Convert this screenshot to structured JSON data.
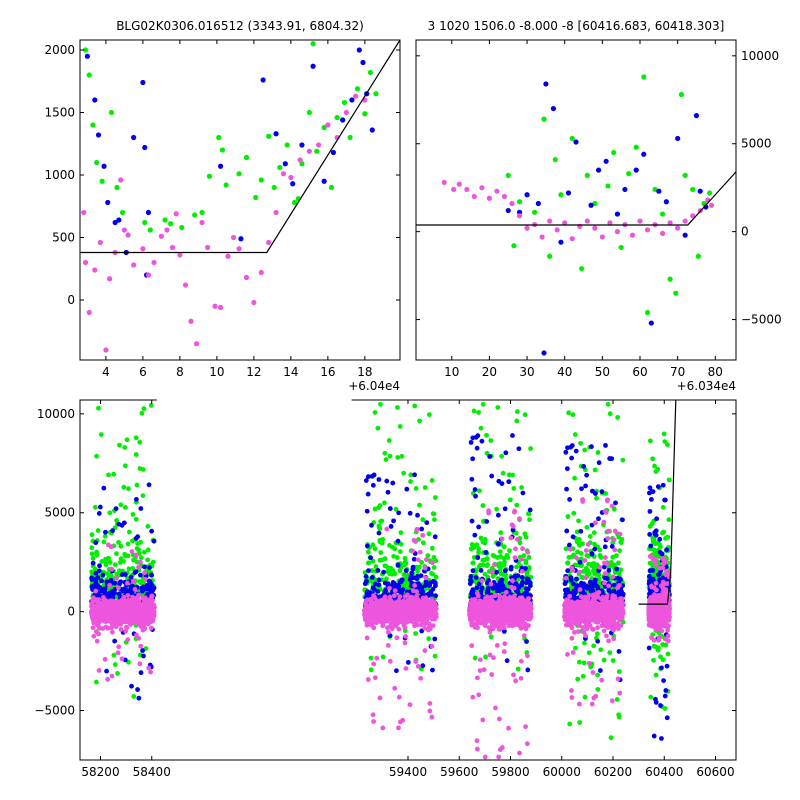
{
  "chart_data": [
    {
      "type": "scatter",
      "title": "BLG02K0306.016512 (3343.91, 6804.32)",
      "x_offset_label": "+6.04e4",
      "xlim": [
        60402.6,
        60419.9
      ],
      "ylim": [
        -480,
        2080
      ],
      "x_ticks": [
        60404,
        60406,
        60408,
        60410,
        60412,
        60414,
        60416,
        60418
      ],
      "x_tick_labels": [
        "4",
        "6",
        "8",
        "10",
        "12",
        "14",
        "16",
        "18"
      ],
      "y_ticks": [
        0,
        500,
        1000,
        1500,
        2000
      ],
      "y_tick_labels": [
        "0",
        "500",
        "1000",
        "1500",
        "2000"
      ],
      "series": [
        {
          "color": "#00ee00",
          "points": [
            [
              60402.9,
              2000
            ],
            [
              60403.1,
              1800
            ],
            [
              60403.3,
              1400
            ],
            [
              60403.5,
              1100
            ],
            [
              60403.8,
              950
            ],
            [
              60404.3,
              1500
            ],
            [
              60404.6,
              900
            ],
            [
              60404.9,
              700
            ],
            [
              60406.1,
              620
            ],
            [
              60406.4,
              560
            ],
            [
              60407.2,
              640
            ],
            [
              60407.5,
              610
            ],
            [
              60408.1,
              580
            ],
            [
              60408.8,
              680
            ],
            [
              60409.2,
              700
            ],
            [
              60409.6,
              990
            ],
            [
              60410.1,
              1300
            ],
            [
              60410.3,
              1200
            ],
            [
              60410.5,
              920
            ],
            [
              60411.2,
              1010
            ],
            [
              60411.6,
              1140
            ],
            [
              60412.1,
              820
            ],
            [
              60412.4,
              960
            ],
            [
              60412.8,
              1310
            ],
            [
              60413.1,
              900
            ],
            [
              60413.4,
              1060
            ],
            [
              60413.8,
              1240
            ],
            [
              60414.2,
              780
            ],
            [
              60414.6,
              1090
            ],
            [
              60415.0,
              1500
            ],
            [
              60415.4,
              1190
            ],
            [
              60415.8,
              1380
            ],
            [
              60416.2,
              900
            ],
            [
              60416.5,
              1460
            ],
            [
              60416.9,
              1580
            ],
            [
              60417.2,
              1300
            ],
            [
              60417.6,
              1690
            ],
            [
              60418.0,
              1490
            ],
            [
              60418.3,
              1820
            ],
            [
              60418.6,
              1650
            ],
            [
              60415.2,
              2050
            ],
            [
              60414.4,
              810
            ]
          ]
        },
        {
          "color": "#0000ee",
          "points": [
            [
              60403.0,
              1950
            ],
            [
              60403.4,
              1600
            ],
            [
              60403.6,
              1320
            ],
            [
              60403.9,
              1070
            ],
            [
              60404.1,
              780
            ],
            [
              60404.5,
              620
            ],
            [
              60405.1,
              380
            ],
            [
              60405.5,
              1300
            ],
            [
              60406.0,
              1740
            ],
            [
              60406.1,
              1220
            ],
            [
              60406.3,
              700
            ],
            [
              60406.2,
              200
            ],
            [
              60411.3,
              490
            ],
            [
              60412.5,
              1760
            ],
            [
              60413.2,
              1330
            ],
            [
              60413.7,
              1090
            ],
            [
              60414.1,
              930
            ],
            [
              60414.6,
              1240
            ],
            [
              60415.2,
              1870
            ],
            [
              60415.8,
              950
            ],
            [
              60416.3,
              1180
            ],
            [
              60416.8,
              1440
            ],
            [
              60417.3,
              1600
            ],
            [
              60417.7,
              2000
            ],
            [
              60418.1,
              1650
            ],
            [
              60418.4,
              1360
            ],
            [
              60417.9,
              1900
            ],
            [
              60404.7,
              640
            ],
            [
              60410.2,
              1070
            ]
          ]
        },
        {
          "color": "#ee55dd",
          "points": [
            [
              60402.8,
              700
            ],
            [
              60402.9,
              300
            ],
            [
              60403.1,
              -100
            ],
            [
              60403.4,
              240
            ],
            [
              60403.7,
              460
            ],
            [
              60404.2,
              170
            ],
            [
              60404.5,
              380
            ],
            [
              60404.8,
              960
            ],
            [
              60405.2,
              520
            ],
            [
              60405.5,
              280
            ],
            [
              60406.0,
              410
            ],
            [
              60406.3,
              200
            ],
            [
              60406.6,
              300
            ],
            [
              60407.0,
              510
            ],
            [
              60407.3,
              560
            ],
            [
              60407.6,
              420
            ],
            [
              60408.0,
              360
            ],
            [
              60408.3,
              120
            ],
            [
              60408.6,
              -170
            ],
            [
              60408.9,
              -350
            ],
            [
              60409.2,
              620
            ],
            [
              60409.5,
              420
            ],
            [
              60409.9,
              -50
            ],
            [
              60410.2,
              -60
            ],
            [
              60410.6,
              350
            ],
            [
              60410.9,
              500
            ],
            [
              60411.2,
              410
            ],
            [
              60411.6,
              180
            ],
            [
              60412.0,
              -20
            ],
            [
              60412.4,
              220
            ],
            [
              60412.8,
              460
            ],
            [
              60413.2,
              700
            ],
            [
              60413.6,
              1010
            ],
            [
              60414.0,
              980
            ],
            [
              60414.5,
              1120
            ],
            [
              60415.0,
              1190
            ],
            [
              60415.5,
              1240
            ],
            [
              60416.0,
              1400
            ],
            [
              60416.5,
              1300
            ],
            [
              60417.0,
              1500
            ],
            [
              60417.5,
              1630
            ],
            [
              60418.0,
              1600
            ],
            [
              60407.8,
              690
            ],
            [
              60405.0,
              560
            ],
            [
              60404.0,
              -400
            ]
          ]
        }
      ],
      "model_line": [
        [
          60402.6,
          380
        ],
        [
          60412.7,
          380
        ],
        [
          60419.9,
          2080
        ]
      ]
    },
    {
      "type": "scatter",
      "title": "3 1020 1506.0 -8.000 -8 [60416.683, 60418.303]",
      "x_offset_label": "+6.034e4",
      "xlim": [
        60340.5,
        60425.5
      ],
      "ylim": [
        -7300,
        10900
      ],
      "x_ticks": [
        60350,
        60360,
        60370,
        60380,
        60390,
        60400,
        60410,
        60420
      ],
      "x_tick_labels": [
        "10",
        "20",
        "30",
        "40",
        "50",
        "60",
        "70",
        "80"
      ],
      "y_ticks": [
        -5000,
        0,
        5000,
        10000
      ],
      "y_tick_labels": [
        "−5000",
        "0",
        "5000",
        "10000"
      ],
      "series": [
        {
          "color": "#00ee00",
          "points": [
            [
              60365,
              3200
            ],
            [
              60366.5,
              -800
            ],
            [
              60368,
              1700
            ],
            [
              60372,
              1100
            ],
            [
              60374.5,
              6400
            ],
            [
              60376,
              -1400
            ],
            [
              60377.5,
              4100
            ],
            [
              60379,
              2100
            ],
            [
              60382,
              5300
            ],
            [
              60384.5,
              -2100
            ],
            [
              60386,
              3200
            ],
            [
              60388,
              1600
            ],
            [
              60391.5,
              2600
            ],
            [
              60393,
              4500
            ],
            [
              60395,
              -900
            ],
            [
              60397,
              3300
            ],
            [
              60399,
              4800
            ],
            [
              60401,
              8800
            ],
            [
              60402,
              -4600
            ],
            [
              60404,
              2400
            ],
            [
              60406,
              1000
            ],
            [
              60408,
              -2700
            ],
            [
              60409.5,
              -3500
            ],
            [
              60411,
              7800
            ],
            [
              60412,
              3200
            ],
            [
              60414,
              2400
            ],
            [
              60415.5,
              -1400
            ],
            [
              60417,
              1600
            ],
            [
              60418.5,
              2200
            ]
          ]
        },
        {
          "color": "#0000ee",
          "points": [
            [
              60368,
              1100
            ],
            [
              60370,
              2100
            ],
            [
              60373,
              1600
            ],
            [
              60375,
              8400
            ],
            [
              60377,
              7000
            ],
            [
              60379,
              -600
            ],
            [
              60381,
              2200
            ],
            [
              60383,
              5100
            ],
            [
              60387,
              1500
            ],
            [
              60389,
              3500
            ],
            [
              60391,
              4000
            ],
            [
              60394,
              1000
            ],
            [
              60396,
              2400
            ],
            [
              60399,
              3500
            ],
            [
              60401,
              4400
            ],
            [
              60403,
              -5200
            ],
            [
              60405,
              2300
            ],
            [
              60407,
              1700
            ],
            [
              60410,
              5300
            ],
            [
              60412,
              -200
            ],
            [
              60415,
              6600
            ],
            [
              60416,
              2300
            ],
            [
              60417.5,
              1400
            ],
            [
              60374.5,
              -6900
            ],
            [
              60365,
              1200
            ]
          ]
        },
        {
          "color": "#ee55dd",
          "points": [
            [
              60348,
              2800
            ],
            [
              60350.5,
              2400
            ],
            [
              60352,
              2700
            ],
            [
              60354,
              2400
            ],
            [
              60356,
              2000
            ],
            [
              60358,
              2500
            ],
            [
              60360,
              1900
            ],
            [
              60362,
              2300
            ],
            [
              60364,
              2000
            ],
            [
              60366,
              1600
            ],
            [
              60368,
              900
            ],
            [
              60370,
              200
            ],
            [
              60372,
              400
            ],
            [
              60374,
              -300
            ],
            [
              60376,
              600
            ],
            [
              60378,
              100
            ],
            [
              60380,
              500
            ],
            [
              60382,
              -400
            ],
            [
              60384,
              300
            ],
            [
              60386,
              600
            ],
            [
              60388,
              200
            ],
            [
              60390,
              -300
            ],
            [
              60392,
              500
            ],
            [
              60394,
              0
            ],
            [
              60396,
              400
            ],
            [
              60398,
              -200
            ],
            [
              60400,
              600
            ],
            [
              60402,
              100
            ],
            [
              60404,
              400
            ],
            [
              60406,
              -100
            ],
            [
              60408,
              500
            ],
            [
              60410,
              200
            ],
            [
              60412,
              600
            ],
            [
              60414,
              900
            ],
            [
              60416,
              1200
            ],
            [
              60418,
              1800
            ],
            [
              60419,
              1500
            ]
          ]
        }
      ],
      "model_line": [
        [
          60340.5,
          380
        ],
        [
          60412.7,
          380
        ],
        [
          60425.5,
          3400
        ]
      ]
    },
    {
      "type": "scatter",
      "xlim": [
        58120,
        60680
      ],
      "ylim": [
        -7500,
        10700
      ],
      "x_ticks": [
        58200,
        58400,
        59400,
        59600,
        59800,
        60000,
        60200,
        60400,
        60600
      ],
      "x_tick_labels": [
        "58200",
        "58400",
        "59400",
        "59600",
        "59800",
        "60000",
        "60200",
        "60400",
        "60600"
      ],
      "y_ticks": [
        -5000,
        0,
        5000,
        10000
      ],
      "y_tick_labels": [
        "−5000",
        "0",
        "5000",
        "10000"
      ],
      "x_axis_break": [
        58420,
        59180
      ],
      "seasons": [
        {
          "x_start": 58165,
          "x_end": 58410,
          "green_spread": [
            -4500,
            10500
          ],
          "blue_spread": [
            -4500,
            6500
          ],
          "pink_spread": [
            -3500,
            3500
          ]
        },
        {
          "x_start": 59230,
          "x_end": 59510,
          "green_spread": [
            -3000,
            10500
          ],
          "blue_spread": [
            -3000,
            7000
          ],
          "pink_spread": [
            -6000,
            4500
          ]
        },
        {
          "x_start": 59640,
          "x_end": 59880,
          "green_spread": [
            -3000,
            10500
          ],
          "blue_spread": [
            -3000,
            9000
          ],
          "pink_spread": [
            -7500,
            5500
          ]
        },
        {
          "x_start": 60010,
          "x_end": 60240,
          "green_spread": [
            -6500,
            10500
          ],
          "blue_spread": [
            -3500,
            8500
          ],
          "pink_spread": [
            -4800,
            6000
          ]
        },
        {
          "x_start": 60340,
          "x_end": 60420,
          "green_spread": [
            -5000,
            9000
          ],
          "blue_spread": [
            -7000,
            6500
          ],
          "pink_spread": [
            -1500,
            2800
          ]
        }
      ],
      "series_colors": [
        "#00ee00",
        "#0000ee",
        "#ee55dd"
      ],
      "model_line": [
        [
          60300,
          380
        ],
        [
          60412.7,
          380
        ],
        [
          60425,
          2000
        ],
        [
          60445,
          10700
        ]
      ]
    }
  ]
}
